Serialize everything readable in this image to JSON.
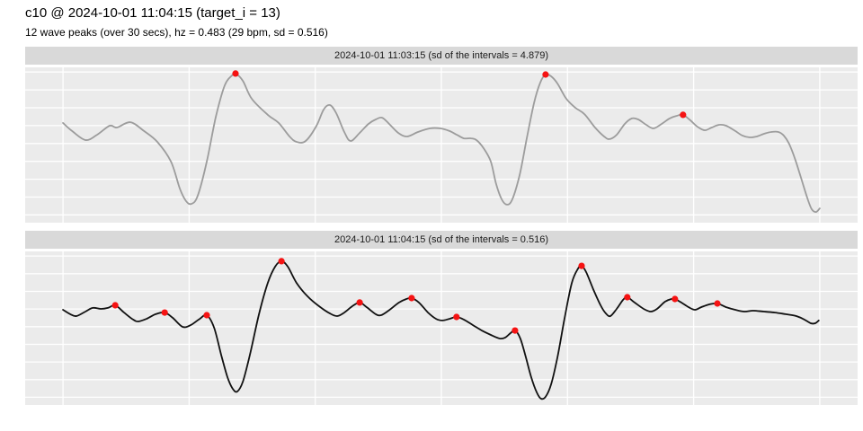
{
  "header": {
    "title": "c10 @ 2024-10-01 11:04:15 (target_i = 13)",
    "subtitle": "12 wave peaks (over 30 secs), hz = 0.483 (29 bpm, sd = 0.516)"
  },
  "chart_data": {
    "type": "line",
    "x_unit": "seconds",
    "x_range": [
      0,
      30
    ],
    "x_gridline_step": 5,
    "y_gridline_count": 9,
    "axes_labeled": false,
    "panel_bg": "#EBEBEB",
    "strip_bg": "#D9D9D9",
    "grid_color": "#FFFFFF",
    "peak_color": "#F51313",
    "facets": [
      {
        "strip_label": "2024-10-01 11:03:15 (sd of the intervals = 4.879)",
        "line_color": "#9C9C9C",
        "points": [
          [
            0.0,
            0.642
          ],
          [
            0.36,
            0.59
          ],
          [
            0.89,
            0.532
          ],
          [
            1.35,
            0.566
          ],
          [
            1.85,
            0.624
          ],
          [
            2.14,
            0.613
          ],
          [
            2.67,
            0.647
          ],
          [
            3.21,
            0.59
          ],
          [
            3.74,
            0.52
          ],
          [
            4.28,
            0.393
          ],
          [
            4.63,
            0.22
          ],
          [
            4.88,
            0.139
          ],
          [
            5.09,
            0.121
          ],
          [
            5.34,
            0.173
          ],
          [
            5.7,
            0.393
          ],
          [
            6.06,
            0.682
          ],
          [
            6.41,
            0.884
          ],
          [
            6.7,
            0.948
          ],
          [
            6.84,
            0.96
          ],
          [
            7.13,
            0.913
          ],
          [
            7.48,
            0.798
          ],
          [
            8.12,
            0.694
          ],
          [
            8.55,
            0.642
          ],
          [
            8.98,
            0.555
          ],
          [
            9.26,
            0.52
          ],
          [
            9.62,
            0.526
          ],
          [
            10.05,
            0.624
          ],
          [
            10.33,
            0.728
          ],
          [
            10.58,
            0.757
          ],
          [
            10.83,
            0.705
          ],
          [
            11.15,
            0.584
          ],
          [
            11.4,
            0.526
          ],
          [
            11.76,
            0.578
          ],
          [
            12.11,
            0.636
          ],
          [
            12.4,
            0.665
          ],
          [
            12.65,
            0.676
          ],
          [
            12.93,
            0.636
          ],
          [
            13.29,
            0.578
          ],
          [
            13.64,
            0.555
          ],
          [
            14.07,
            0.584
          ],
          [
            14.54,
            0.607
          ],
          [
            14.96,
            0.607
          ],
          [
            15.32,
            0.59
          ],
          [
            15.61,
            0.566
          ],
          [
            15.89,
            0.543
          ],
          [
            16.18,
            0.543
          ],
          [
            16.39,
            0.532
          ],
          [
            16.67,
            0.48
          ],
          [
            16.96,
            0.393
          ],
          [
            17.17,
            0.249
          ],
          [
            17.39,
            0.15
          ],
          [
            17.6,
            0.116
          ],
          [
            17.81,
            0.15
          ],
          [
            18.1,
            0.306
          ],
          [
            18.38,
            0.538
          ],
          [
            18.67,
            0.769
          ],
          [
            18.92,
            0.902
          ],
          [
            19.13,
            0.954
          ],
          [
            19.35,
            0.942
          ],
          [
            19.6,
            0.896
          ],
          [
            19.95,
            0.798
          ],
          [
            20.31,
            0.74
          ],
          [
            20.67,
            0.699
          ],
          [
            21.09,
            0.613
          ],
          [
            21.45,
            0.555
          ],
          [
            21.66,
            0.538
          ],
          [
            21.95,
            0.566
          ],
          [
            22.27,
            0.636
          ],
          [
            22.55,
            0.671
          ],
          [
            22.8,
            0.665
          ],
          [
            23.12,
            0.63
          ],
          [
            23.41,
            0.607
          ],
          [
            23.73,
            0.636
          ],
          [
            24.05,
            0.671
          ],
          [
            24.33,
            0.688
          ],
          [
            24.58,
            0.694
          ],
          [
            24.87,
            0.659
          ],
          [
            25.15,
            0.618
          ],
          [
            25.44,
            0.595
          ],
          [
            25.72,
            0.613
          ],
          [
            26.01,
            0.63
          ],
          [
            26.29,
            0.624
          ],
          [
            26.65,
            0.59
          ],
          [
            26.93,
            0.561
          ],
          [
            27.22,
            0.549
          ],
          [
            27.5,
            0.555
          ],
          [
            27.79,
            0.572
          ],
          [
            28.07,
            0.584
          ],
          [
            28.36,
            0.584
          ],
          [
            28.57,
            0.561
          ],
          [
            28.78,
            0.509
          ],
          [
            29.03,
            0.405
          ],
          [
            29.28,
            0.277
          ],
          [
            29.5,
            0.162
          ],
          [
            29.68,
            0.087
          ],
          [
            29.85,
            0.069
          ],
          [
            30.0,
            0.092
          ]
        ],
        "peaks": [
          [
            6.84,
            0.96
          ],
          [
            19.13,
            0.954
          ],
          [
            24.58,
            0.694
          ]
        ]
      },
      {
        "strip_label": "2024-10-01 11:04:15 (sd of the intervals = 0.516)",
        "line_color": "#111111",
        "points": [
          [
            0.0,
            0.62
          ],
          [
            0.29,
            0.591
          ],
          [
            0.53,
            0.579
          ],
          [
            0.89,
            0.608
          ],
          [
            1.18,
            0.632
          ],
          [
            1.5,
            0.626
          ],
          [
            1.78,
            0.632
          ],
          [
            2.07,
            0.649
          ],
          [
            2.42,
            0.602
          ],
          [
            2.78,
            0.556
          ],
          [
            2.99,
            0.544
          ],
          [
            3.31,
            0.561
          ],
          [
            3.67,
            0.591
          ],
          [
            4.03,
            0.602
          ],
          [
            4.35,
            0.567
          ],
          [
            4.74,
            0.509
          ],
          [
            5.06,
            0.52
          ],
          [
            5.42,
            0.561
          ],
          [
            5.7,
            0.585
          ],
          [
            5.99,
            0.503
          ],
          [
            6.27,
            0.327
          ],
          [
            6.52,
            0.181
          ],
          [
            6.73,
            0.105
          ],
          [
            6.91,
            0.088
          ],
          [
            7.13,
            0.152
          ],
          [
            7.41,
            0.327
          ],
          [
            7.77,
            0.591
          ],
          [
            8.12,
            0.795
          ],
          [
            8.41,
            0.901
          ],
          [
            8.66,
            0.936
          ],
          [
            8.91,
            0.901
          ],
          [
            9.26,
            0.795
          ],
          [
            9.69,
            0.708
          ],
          [
            10.15,
            0.643
          ],
          [
            10.58,
            0.596
          ],
          [
            10.87,
            0.579
          ],
          [
            11.15,
            0.602
          ],
          [
            11.47,
            0.643
          ],
          [
            11.76,
            0.667
          ],
          [
            12.04,
            0.637
          ],
          [
            12.4,
            0.591
          ],
          [
            12.61,
            0.585
          ],
          [
            12.9,
            0.614
          ],
          [
            13.32,
            0.667
          ],
          [
            13.61,
            0.69
          ],
          [
            13.82,
            0.696
          ],
          [
            14.11,
            0.667
          ],
          [
            14.47,
            0.602
          ],
          [
            14.79,
            0.561
          ],
          [
            15.04,
            0.55
          ],
          [
            15.32,
            0.561
          ],
          [
            15.6,
            0.573
          ],
          [
            15.89,
            0.556
          ],
          [
            16.25,
            0.52
          ],
          [
            16.6,
            0.485
          ],
          [
            16.96,
            0.456
          ],
          [
            17.31,
            0.433
          ],
          [
            17.53,
            0.439
          ],
          [
            17.74,
            0.468
          ],
          [
            17.92,
            0.485
          ],
          [
            18.13,
            0.433
          ],
          [
            18.35,
            0.31
          ],
          [
            18.56,
            0.181
          ],
          [
            18.78,
            0.082
          ],
          [
            18.95,
            0.041
          ],
          [
            19.13,
            0.053
          ],
          [
            19.35,
            0.135
          ],
          [
            19.6,
            0.31
          ],
          [
            19.88,
            0.561
          ],
          [
            20.17,
            0.795
          ],
          [
            20.42,
            0.889
          ],
          [
            20.56,
            0.906
          ],
          [
            20.74,
            0.865
          ],
          [
            21.02,
            0.754
          ],
          [
            21.31,
            0.649
          ],
          [
            21.52,
            0.596
          ],
          [
            21.7,
            0.579
          ],
          [
            21.95,
            0.626
          ],
          [
            22.2,
            0.684
          ],
          [
            22.37,
            0.702
          ],
          [
            22.66,
            0.667
          ],
          [
            23.02,
            0.626
          ],
          [
            23.3,
            0.608
          ],
          [
            23.55,
            0.626
          ],
          [
            23.87,
            0.673
          ],
          [
            24.12,
            0.69
          ],
          [
            24.26,
            0.69
          ],
          [
            24.51,
            0.667
          ],
          [
            24.8,
            0.637
          ],
          [
            25.05,
            0.62
          ],
          [
            25.3,
            0.637
          ],
          [
            25.62,
            0.655
          ],
          [
            25.94,
            0.661
          ],
          [
            26.29,
            0.637
          ],
          [
            26.65,
            0.62
          ],
          [
            27.01,
            0.608
          ],
          [
            27.36,
            0.614
          ],
          [
            27.79,
            0.608
          ],
          [
            28.22,
            0.602
          ],
          [
            28.65,
            0.591
          ],
          [
            29.07,
            0.579
          ],
          [
            29.39,
            0.556
          ],
          [
            29.64,
            0.532
          ],
          [
            29.82,
            0.532
          ],
          [
            29.96,
            0.55
          ]
        ],
        "peaks": [
          [
            2.07,
            0.649
          ],
          [
            4.03,
            0.602
          ],
          [
            5.7,
            0.585
          ],
          [
            8.66,
            0.936
          ],
          [
            11.76,
            0.667
          ],
          [
            13.82,
            0.696
          ],
          [
            15.6,
            0.573
          ],
          [
            17.92,
            0.485
          ],
          [
            20.56,
            0.906
          ],
          [
            22.37,
            0.702
          ],
          [
            24.26,
            0.69
          ],
          [
            25.94,
            0.661
          ]
        ]
      }
    ]
  }
}
